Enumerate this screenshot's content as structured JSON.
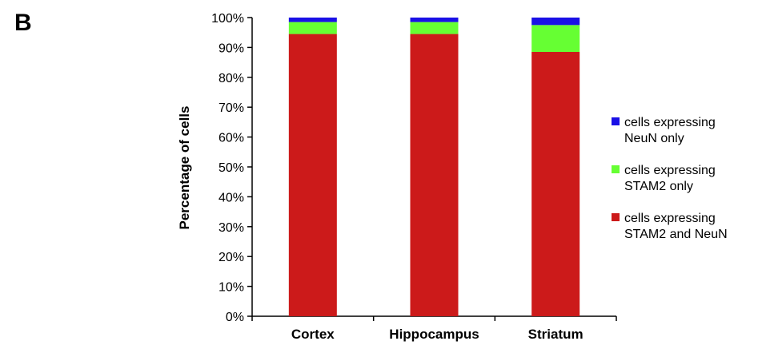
{
  "panel_label": "B",
  "chart_data": {
    "type": "bar",
    "stacked": true,
    "categories": [
      "Cortex",
      "Hippocampus",
      "Striatum"
    ],
    "series": [
      {
        "name": "cells expressing STAM2 and NeuN",
        "color": "#cc1a1a",
        "values": [
          94.5,
          94.5,
          88.5
        ]
      },
      {
        "name": "cells expressing STAM2 only",
        "color": "#66ff33",
        "values": [
          4.0,
          4.0,
          9.0
        ]
      },
      {
        "name": "cells expressing NeuN only",
        "color": "#1a10e6",
        "values": [
          1.5,
          1.5,
          2.5
        ]
      }
    ],
    "xlabel": "",
    "ylabel": "Percentage of cells",
    "ylim": [
      0,
      100
    ],
    "y_ticks": [
      "0%",
      "10%",
      "20%",
      "30%",
      "40%",
      "50%",
      "60%",
      "70%",
      "80%",
      "90%",
      "100%"
    ],
    "grid": false,
    "legend": {
      "placement": "right",
      "entries": [
        {
          "lines": [
            "cells expressing",
            "NeuN only"
          ],
          "color": "#1a10e6"
        },
        {
          "lines": [
            "cells expressing",
            "STAM2 only"
          ],
          "color": "#66ff33"
        },
        {
          "lines": [
            "cells expressing",
            "STAM2 and NeuN"
          ],
          "color": "#cc1a1a"
        }
      ]
    }
  }
}
